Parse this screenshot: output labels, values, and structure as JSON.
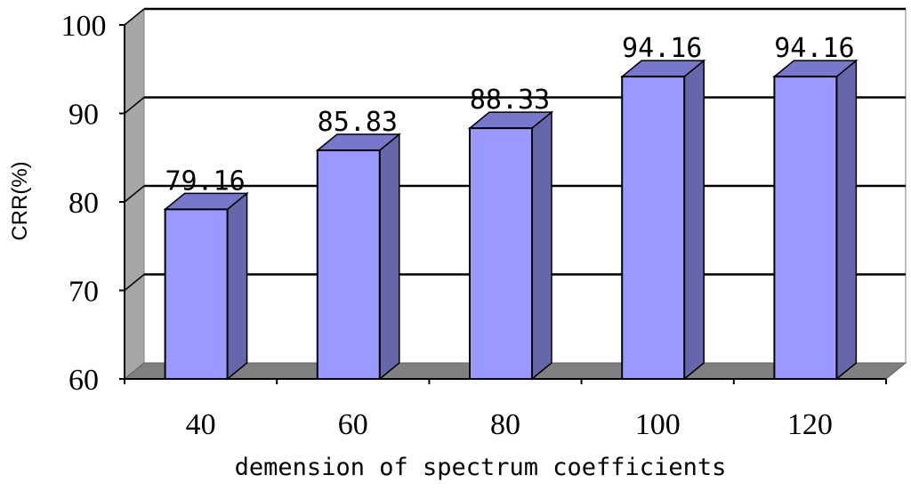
{
  "chart_data": {
    "type": "bar",
    "style": "3d-column",
    "categories": [
      "40",
      "60",
      "80",
      "100",
      "120"
    ],
    "values": [
      79.16,
      85.83,
      88.33,
      94.16,
      94.16
    ],
    "data_labels": [
      "79.16",
      "85.83",
      "88.33",
      "94.16",
      "94.16"
    ],
    "xlabel": "demension of spectrum coefficients",
    "ylabel": "CRR(%)",
    "ylim": [
      60,
      100
    ],
    "yticks": [
      "60",
      "70",
      "80",
      "90",
      "100"
    ],
    "grid": true,
    "legend": "none"
  },
  "colors": {
    "bar_front": "#9999ff",
    "bar_side": "#6666aa",
    "bar_top": "#7777cc",
    "wall_side": "#a6a6a6",
    "floor": "#808080",
    "gridline": "#000000"
  }
}
